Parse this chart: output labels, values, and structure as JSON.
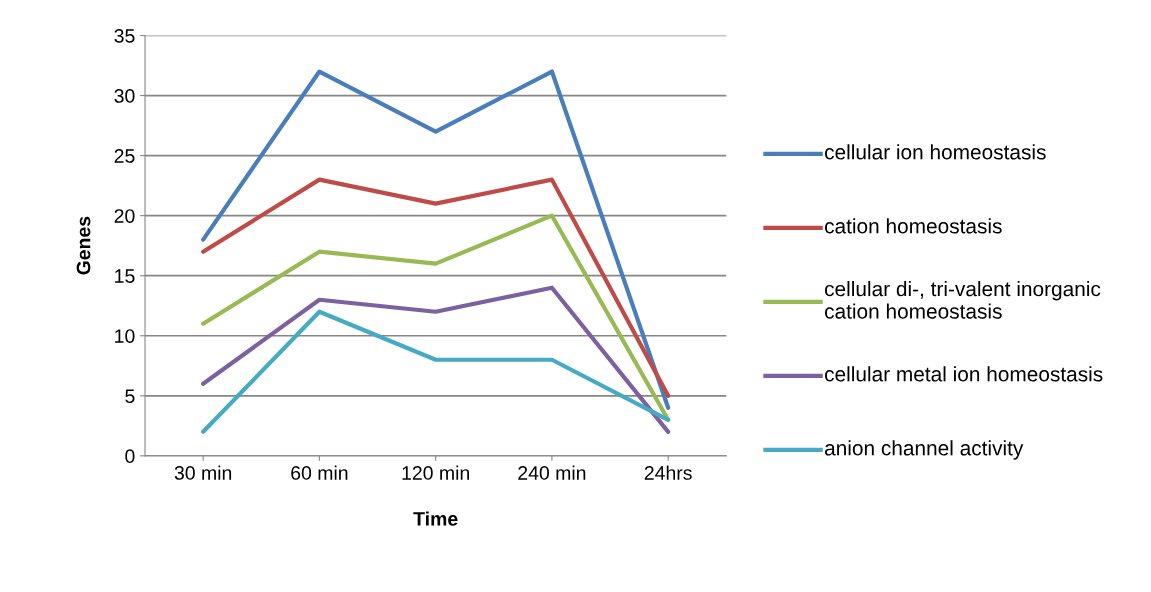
{
  "chart_data": {
    "type": "line",
    "xlabel": "Time",
    "ylabel": "Genes",
    "categories": [
      "30 min",
      "60 min",
      "120 min",
      "240 min",
      "24hrs"
    ],
    "series": [
      {
        "name": "cellular ion homeostasis",
        "color": "#4a7ebb",
        "values": [
          18,
          32,
          27,
          32,
          4
        ]
      },
      {
        "name": "cation homeostasis",
        "color": "#be4b48",
        "values": [
          17,
          23,
          21,
          23,
          5
        ]
      },
      {
        "name": "cellular di-, tri-valent inorganic cation homeostasis",
        "color": "#98b954",
        "values": [
          11,
          17,
          16,
          20,
          3
        ]
      },
      {
        "name": "cellular metal ion homeostasis",
        "color": "#7d60a0",
        "values": [
          6,
          13,
          12,
          14,
          2
        ]
      },
      {
        "name": "anion channel activity",
        "color": "#46aac5",
        "values": [
          2,
          12,
          8,
          8,
          3
        ]
      }
    ],
    "ylim": [
      0,
      35
    ],
    "yticks": [
      0,
      5,
      10,
      15,
      20,
      25,
      30,
      35
    ],
    "grid": "y",
    "legend": "right",
    "marker": "none",
    "line_style": "solid"
  }
}
